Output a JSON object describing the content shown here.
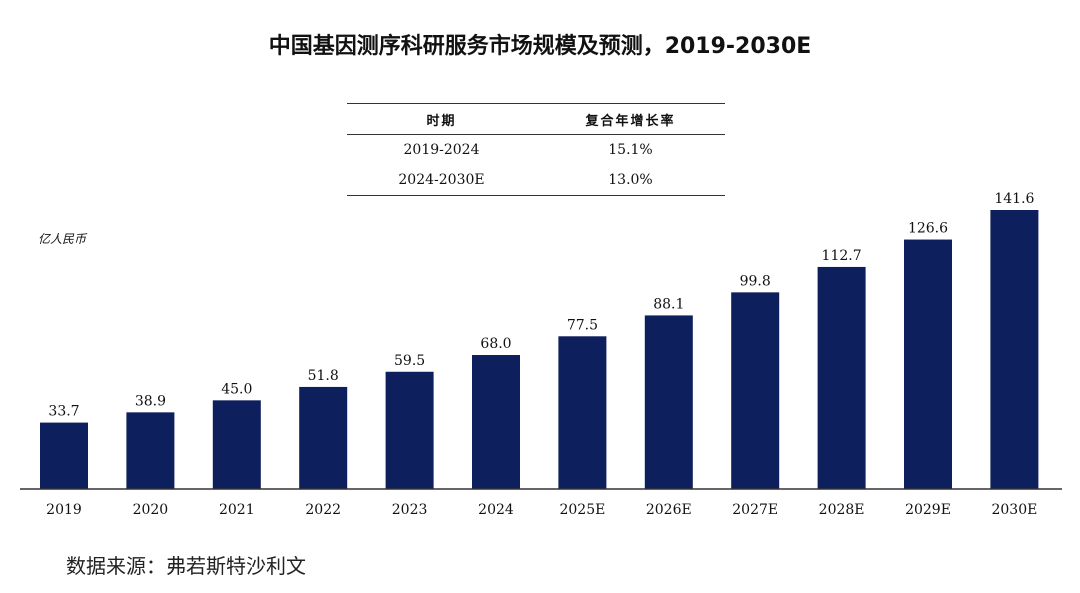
{
  "title": "中国基因测序科研服务市场规模及预测，2019-2030E",
  "unit_label": "亿人民币",
  "cagr_table": {
    "headers": [
      "时期",
      "复合年增长率"
    ],
    "rows": [
      {
        "period": "2019-2024",
        "rate": "15.1%"
      },
      {
        "period": "2024-2030E",
        "rate": "13.0%"
      }
    ]
  },
  "source": "数据来源：弗若斯特沙利文",
  "colors": {
    "bar": "#0d1f5c",
    "axis": "#333333"
  },
  "chart_data": {
    "type": "bar",
    "title": "中国基因测序科研服务市场规模及预测，2019-2030E",
    "ylabel": "亿人民币",
    "categories": [
      "2019",
      "2020",
      "2021",
      "2022",
      "2023",
      "2024",
      "2025E",
      "2026E",
      "2027E",
      "2028E",
      "2029E",
      "2030E"
    ],
    "values": [
      33.7,
      38.9,
      45.0,
      51.8,
      59.5,
      68.0,
      77.5,
      88.1,
      99.8,
      112.7,
      126.6,
      141.6
    ],
    "value_labels": [
      "33.7",
      "38.9",
      "45.0",
      "51.8",
      "59.5",
      "68.0",
      "77.5",
      "88.1",
      "99.8",
      "112.7",
      "126.6",
      "141.6"
    ],
    "ylim": [
      0,
      141.6
    ],
    "grid": false
  }
}
